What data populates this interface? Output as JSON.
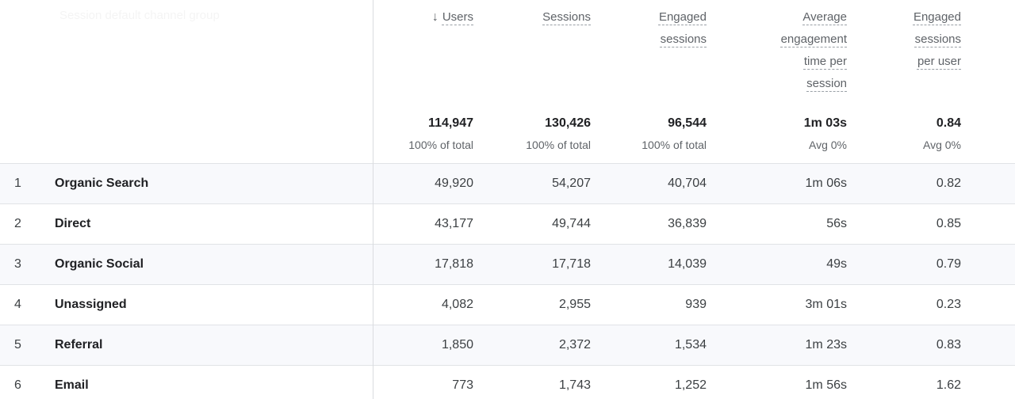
{
  "table": {
    "dimension_header": "Session default channel group",
    "columns": [
      {
        "label": "Users",
        "sorted": "descending"
      },
      {
        "label": "Sessions"
      },
      {
        "label": "Engaged sessions"
      },
      {
        "label": "Average engagement time per session"
      },
      {
        "label": "Engaged sessions per user"
      }
    ],
    "totals": {
      "values": [
        "114,947",
        "130,426",
        "96,544",
        "1m 03s",
        "0.84"
      ],
      "subs": [
        "100% of total",
        "100% of total",
        "100% of total",
        "Avg 0%",
        "Avg 0%"
      ]
    },
    "rows": [
      {
        "num": "1",
        "channel": "Organic Search",
        "values": [
          "49,920",
          "54,207",
          "40,704",
          "1m 06s",
          "0.82"
        ]
      },
      {
        "num": "2",
        "channel": "Direct",
        "values": [
          "43,177",
          "49,744",
          "36,839",
          "56s",
          "0.85"
        ]
      },
      {
        "num": "3",
        "channel": "Organic Social",
        "values": [
          "17,818",
          "17,718",
          "14,039",
          "49s",
          "0.79"
        ]
      },
      {
        "num": "4",
        "channel": "Unassigned",
        "values": [
          "4,082",
          "2,955",
          "939",
          "3m 01s",
          "0.23"
        ]
      },
      {
        "num": "5",
        "channel": "Referral",
        "values": [
          "1,850",
          "2,372",
          "1,534",
          "1m 23s",
          "0.83"
        ]
      },
      {
        "num": "6",
        "channel": "Email",
        "values": [
          "773",
          "1,743",
          "1,252",
          "1m 56s",
          "1.62"
        ]
      }
    ]
  },
  "icons": {
    "sort_descending": "↓"
  },
  "colors": {
    "row_stripe": "#f8f9fc",
    "divider": "#dadce0",
    "row_border": "#e1e3e6",
    "header_text": "#5f6368",
    "primary_text": "#202124",
    "cell_text": "#3c4043"
  }
}
